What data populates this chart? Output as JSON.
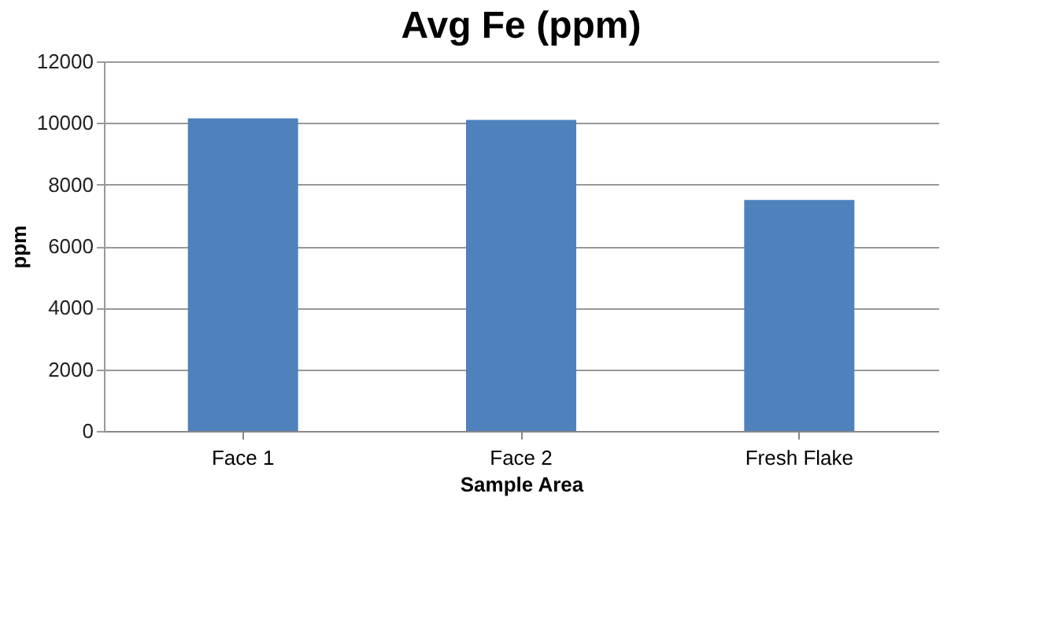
{
  "chart_data": {
    "type": "bar",
    "title": "Avg Fe (ppm)",
    "xlabel": "Sample Area",
    "ylabel": "ppm",
    "categories": [
      "Face 1",
      "Face 2",
      "Fresh Flake"
    ],
    "values": [
      10150,
      10100,
      7500
    ],
    "color": "#4f81bd",
    "ylim": [
      0,
      12000
    ],
    "yticks": [
      0,
      2000,
      4000,
      6000,
      8000,
      10000,
      12000
    ],
    "grid": "y"
  }
}
